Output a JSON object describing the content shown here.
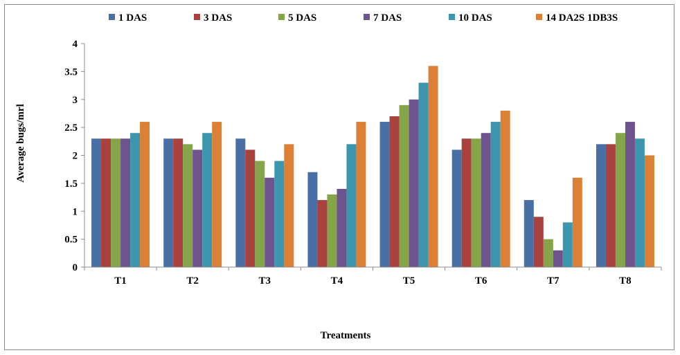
{
  "chart_data": {
    "type": "bar",
    "title": "",
    "xlabel": "Treatments",
    "ylabel": "Average bugs/mrl",
    "ylim": [
      0,
      4
    ],
    "yticks": [
      "0",
      "0.5",
      "1",
      "1.5",
      "2",
      "2.5",
      "3",
      "3.5",
      "4"
    ],
    "grid": false,
    "legend_position": "top",
    "categories": [
      "T1",
      "T2",
      "T3",
      "T4",
      "T5",
      "T6",
      "T7",
      "T8"
    ],
    "series": [
      {
        "name": "1 DAS",
        "color": "#4a6fa5",
        "values": [
          2.3,
          2.3,
          2.3,
          1.7,
          2.6,
          2.1,
          1.2,
          2.2
        ]
      },
      {
        "name": "3 DAS",
        "color": "#a8423f",
        "values": [
          2.3,
          2.3,
          2.1,
          1.2,
          2.7,
          2.3,
          0.9,
          2.2
        ]
      },
      {
        "name": "5 DAS",
        "color": "#86a44a",
        "values": [
          2.3,
          2.2,
          1.9,
          1.3,
          2.9,
          2.3,
          0.5,
          2.4
        ]
      },
      {
        "name": "7 DAS",
        "color": "#6e548d",
        "values": [
          2.3,
          2.1,
          1.6,
          1.4,
          3.0,
          2.4,
          0.3,
          2.6
        ]
      },
      {
        "name": "10 DAS",
        "color": "#3d96ae",
        "values": [
          2.4,
          2.4,
          1.9,
          2.2,
          3.3,
          2.6,
          0.8,
          2.3
        ]
      },
      {
        "name": "14 DA2S 1DB3S",
        "color": "#da8137",
        "values": [
          2.6,
          2.6,
          2.2,
          2.6,
          3.6,
          2.8,
          1.6,
          2.0
        ]
      }
    ]
  }
}
